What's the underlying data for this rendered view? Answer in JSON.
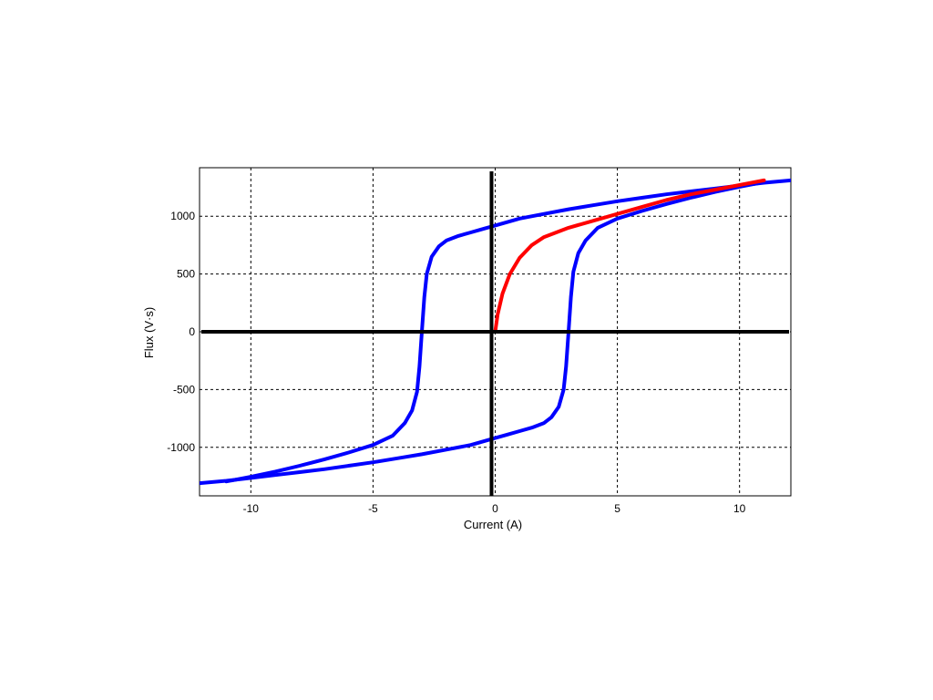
{
  "chart_data": {
    "type": "line",
    "title": "",
    "xlabel": "Current (A)",
    "ylabel": "Flux (V·s)",
    "xlim": [
      -12.1,
      12.1
    ],
    "ylim": [
      -1420,
      1420
    ],
    "xticks": [
      -10,
      -5,
      0,
      5,
      10
    ],
    "yticks": [
      -1000,
      -500,
      0,
      500,
      1000
    ],
    "xtick_labels": [
      "-10",
      "-5",
      "0",
      "5",
      "10"
    ],
    "ytick_labels": [
      "-1000",
      "-500",
      "0",
      "500",
      "1000"
    ],
    "grid": true,
    "legend": "none",
    "series": [
      {
        "key": "hysteresis-descending",
        "color": "#0000ff",
        "points": [
          [
            12.1,
            1310
          ],
          [
            11,
            1290
          ],
          [
            10,
            1265
          ],
          [
            9,
            1240
          ],
          [
            8,
            1215
          ],
          [
            7,
            1190
          ],
          [
            6,
            1160
          ],
          [
            5,
            1130
          ],
          [
            4,
            1095
          ],
          [
            3,
            1060
          ],
          [
            2,
            1020
          ],
          [
            1,
            980
          ],
          [
            0,
            920
          ],
          [
            -0.5,
            890
          ],
          [
            -1,
            860
          ],
          [
            -1.5,
            830
          ],
          [
            -2,
            790
          ],
          [
            -2.3,
            740
          ],
          [
            -2.6,
            650
          ],
          [
            -2.8,
            500
          ],
          [
            -2.9,
            300
          ],
          [
            -3.0,
            0
          ],
          [
            -3.1,
            -300
          ],
          [
            -3.2,
            -520
          ],
          [
            -3.4,
            -680
          ],
          [
            -3.7,
            -790
          ],
          [
            -4.2,
            -900
          ],
          [
            -5,
            -980
          ],
          [
            -6,
            -1045
          ],
          [
            -7,
            -1105
          ],
          [
            -8,
            -1160
          ],
          [
            -9,
            -1210
          ],
          [
            -10,
            -1255
          ],
          [
            -11,
            -1295
          ]
        ]
      },
      {
        "key": "hysteresis-ascending",
        "color": "#0000ff",
        "points": [
          [
            -12.1,
            -1310
          ],
          [
            -11,
            -1290
          ],
          [
            -10,
            -1265
          ],
          [
            -9,
            -1240
          ],
          [
            -8,
            -1215
          ],
          [
            -7,
            -1190
          ],
          [
            -6,
            -1160
          ],
          [
            -5,
            -1130
          ],
          [
            -4,
            -1095
          ],
          [
            -3,
            -1060
          ],
          [
            -2,
            -1020
          ],
          [
            -1,
            -980
          ],
          [
            0,
            -920
          ],
          [
            0.5,
            -890
          ],
          [
            1,
            -860
          ],
          [
            1.5,
            -830
          ],
          [
            2,
            -790
          ],
          [
            2.3,
            -740
          ],
          [
            2.6,
            -650
          ],
          [
            2.8,
            -500
          ],
          [
            2.9,
            -300
          ],
          [
            3.0,
            0
          ],
          [
            3.1,
            300
          ],
          [
            3.2,
            520
          ],
          [
            3.4,
            680
          ],
          [
            3.7,
            790
          ],
          [
            4.2,
            900
          ],
          [
            5,
            980
          ],
          [
            6,
            1045
          ],
          [
            7,
            1105
          ],
          [
            8,
            1160
          ],
          [
            9,
            1210
          ],
          [
            10,
            1255
          ],
          [
            11,
            1295
          ]
        ]
      },
      {
        "key": "initial-magnetization",
        "color": "#ff0000",
        "points": [
          [
            0,
            0
          ],
          [
            0.1,
            150
          ],
          [
            0.3,
            330
          ],
          [
            0.6,
            500
          ],
          [
            1,
            640
          ],
          [
            1.5,
            750
          ],
          [
            2,
            820
          ],
          [
            3,
            900
          ],
          [
            4,
            960
          ],
          [
            5,
            1020
          ],
          [
            6,
            1080
          ],
          [
            7,
            1140
          ],
          [
            8,
            1190
          ],
          [
            9,
            1230
          ],
          [
            10,
            1270
          ],
          [
            11,
            1310
          ]
        ]
      }
    ]
  }
}
